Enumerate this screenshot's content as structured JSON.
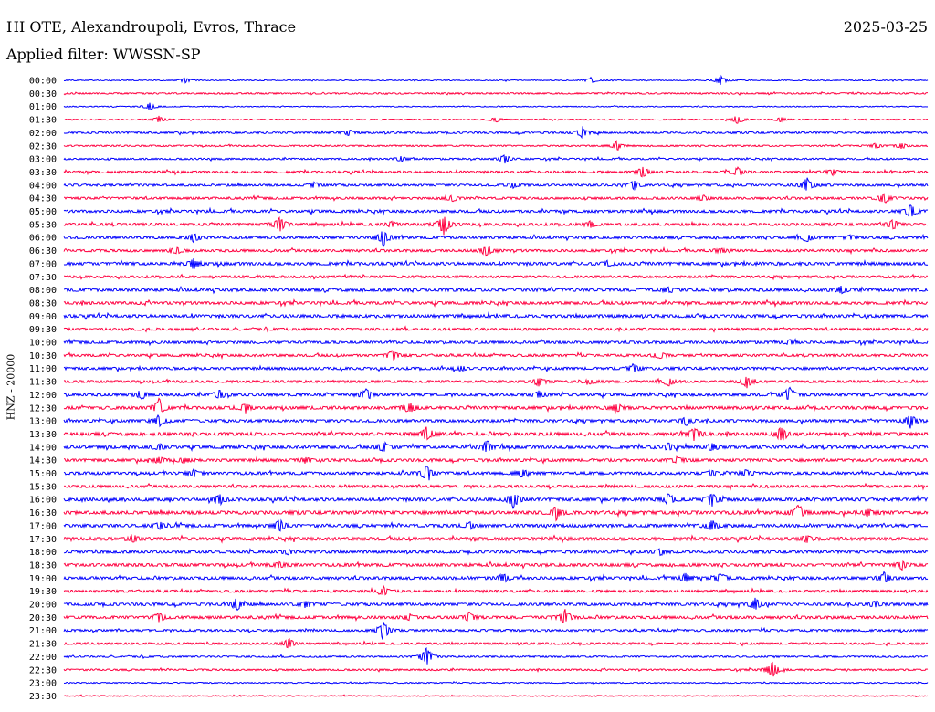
{
  "header": {
    "station": "HI OTE, Alexandroupoli, Evros, Thrace",
    "date": "2025-03-25",
    "filter": "Applied filter: WWSSN-SP"
  },
  "chart_data": {
    "type": "line",
    "title": "HI OTE, Alexandroupoli, Evros, Thrace",
    "subtitle": "Applied filter: WWSSN-SP",
    "date": "2025-03-25",
    "ylabel": "HNZ - 20000",
    "xlabel": "",
    "grid": false,
    "colors": {
      "even_hour": "#0000ff",
      "half_hour": "#ff0040"
    },
    "y_tick_labels": [
      "00:00",
      "00:30",
      "01:00",
      "01:30",
      "02:00",
      "02:30",
      "03:00",
      "03:30",
      "04:00",
      "04:30",
      "05:00",
      "05:30",
      "06:00",
      "06:30",
      "07:00",
      "07:30",
      "08:00",
      "08:30",
      "09:00",
      "09:30",
      "10:00",
      "10:30",
      "11:00",
      "11:30",
      "12:00",
      "12:30",
      "13:00",
      "13:30",
      "14:00",
      "14:30",
      "15:00",
      "15:30",
      "16:00",
      "16:30",
      "17:00",
      "17:30",
      "18:00",
      "18:30",
      "19:00",
      "19:30",
      "20:00",
      "20:30",
      "21:00",
      "21:30",
      "22:00",
      "22:30",
      "23:00",
      "23:30"
    ],
    "trace_noise_level": [
      0.5,
      0.8,
      0.5,
      0.6,
      1.0,
      0.8,
      0.9,
      1.2,
      1.2,
      1.2,
      1.4,
      1.4,
      1.4,
      1.3,
      1.6,
      1.3,
      1.6,
      1.5,
      1.6,
      1.3,
      1.4,
      1.3,
      1.4,
      1.3,
      1.5,
      1.6,
      1.5,
      1.7,
      1.6,
      1.5,
      1.5,
      1.4,
      1.7,
      1.8,
      1.6,
      1.7,
      1.4,
      1.6,
      1.5,
      1.3,
      1.5,
      1.5,
      1.2,
      1.1,
      0.9,
      0.9,
      0.6,
      0.6
    ],
    "events": [
      {
        "trace": 0,
        "pos": [
          0.76,
          0.61,
          0.14
        ],
        "amp": [
          5,
          3,
          3
        ]
      },
      {
        "trace": 2,
        "pos": [
          0.1
        ],
        "amp": [
          5
        ]
      },
      {
        "trace": 3,
        "pos": [
          0.11,
          0.78,
          0.83,
          0.5
        ],
        "amp": [
          4,
          5,
          3,
          3
        ]
      },
      {
        "trace": 4,
        "pos": [
          0.6,
          0.33
        ],
        "amp": [
          6,
          3
        ]
      },
      {
        "trace": 5,
        "pos": [
          0.64,
          0.94,
          0.97
        ],
        "amp": [
          5,
          3,
          3
        ]
      },
      {
        "trace": 6,
        "pos": [
          0.51,
          0.39
        ],
        "amp": [
          5,
          3
        ]
      },
      {
        "trace": 7,
        "pos": [
          0.67,
          0.78,
          0.89
        ],
        "amp": [
          7,
          5,
          3
        ]
      },
      {
        "trace": 8,
        "pos": [
          0.86,
          0.66,
          0.29,
          0.52
        ],
        "amp": [
          9,
          5,
          3,
          3
        ]
      },
      {
        "trace": 9,
        "pos": [
          0.95,
          0.45,
          0.74
        ],
        "amp": [
          6,
          4,
          3
        ]
      },
      {
        "trace": 10,
        "pos": [
          0.98
        ],
        "amp": [
          8
        ]
      },
      {
        "trace": 11,
        "pos": [
          0.25,
          0.44,
          0.96,
          0.61,
          0.38
        ],
        "amp": [
          9,
          12,
          6,
          4,
          3
        ]
      },
      {
        "trace": 12,
        "pos": [
          0.37,
          0.15,
          0.86,
          0.91
        ],
        "amp": [
          10,
          5,
          5,
          3
        ]
      },
      {
        "trace": 13,
        "pos": [
          0.49,
          0.13,
          0.76
        ],
        "amp": [
          6,
          4,
          3
        ]
      },
      {
        "trace": 14,
        "pos": [
          0.15,
          0.63
        ],
        "amp": [
          6,
          3
        ]
      },
      {
        "trace": 16,
        "pos": [
          0.9,
          0.7
        ],
        "amp": [
          4,
          3
        ]
      },
      {
        "trace": 20,
        "pos": [
          0.84
        ],
        "amp": [
          3
        ]
      },
      {
        "trace": 21,
        "pos": [
          0.38,
          0.69
        ],
        "amp": [
          6,
          4
        ]
      },
      {
        "trace": 22,
        "pos": [
          0.66,
          0.46
        ],
        "amp": [
          5,
          3
        ]
      },
      {
        "trace": 23,
        "pos": [
          0.55,
          0.7,
          0.79,
          0.61
        ],
        "amp": [
          5,
          5,
          7,
          3
        ]
      },
      {
        "trace": 24,
        "pos": [
          0.09,
          0.18,
          0.35,
          0.84,
          0.55
        ],
        "amp": [
          5,
          5,
          7,
          8,
          4
        ]
      },
      {
        "trace": 25,
        "pos": [
          0.11,
          0.21,
          0.4,
          0.64
        ],
        "amp": [
          10,
          5,
          6,
          5
        ]
      },
      {
        "trace": 26,
        "pos": [
          0.11,
          0.72,
          0.98
        ],
        "amp": [
          7,
          5,
          8
        ]
      },
      {
        "trace": 27,
        "pos": [
          0.42,
          0.73,
          0.83
        ],
        "amp": [
          8,
          7,
          7
        ]
      },
      {
        "trace": 28,
        "pos": [
          0.11,
          0.37,
          0.49,
          0.7,
          0.75
        ],
        "amp": [
          4,
          6,
          7,
          4,
          5
        ]
      },
      {
        "trace": 29,
        "pos": [
          0.11,
          0.14,
          0.28,
          0.71
        ],
        "amp": [
          4,
          3,
          3,
          3
        ]
      },
      {
        "trace": 30,
        "pos": [
          0.42,
          0.15,
          0.53,
          0.75,
          0.79
        ],
        "amp": [
          10,
          4,
          5,
          4,
          4
        ]
      },
      {
        "trace": 32,
        "pos": [
          0.18,
          0.52,
          0.7,
          0.75
        ],
        "amp": [
          6,
          9,
          6,
          8
        ]
      },
      {
        "trace": 33,
        "pos": [
          0.57,
          0.85,
          0.93
        ],
        "amp": [
          8,
          10,
          4
        ]
      },
      {
        "trace": 34,
        "pos": [
          0.11,
          0.25,
          0.47,
          0.75
        ],
        "amp": [
          4,
          7,
          4,
          7
        ]
      },
      {
        "trace": 35,
        "pos": [
          0.08,
          0.86
        ],
        "amp": [
          4,
          4
        ]
      },
      {
        "trace": 36,
        "pos": [
          0.26,
          0.69
        ],
        "amp": [
          3,
          4
        ]
      },
      {
        "trace": 37,
        "pos": [
          0.25,
          0.97
        ],
        "amp": [
          3,
          5
        ]
      },
      {
        "trace": 38,
        "pos": [
          0.51,
          0.72,
          0.76,
          0.95
        ],
        "amp": [
          5,
          5,
          6,
          6
        ]
      },
      {
        "trace": 39,
        "pos": [
          0.37
        ],
        "amp": [
          5
        ]
      },
      {
        "trace": 40,
        "pos": [
          0.2,
          0.28,
          0.8,
          0.94
        ],
        "amp": [
          7,
          4,
          7,
          4
        ]
      },
      {
        "trace": 41,
        "pos": [
          0.11,
          0.47,
          0.58,
          0.4
        ],
        "amp": [
          5,
          6,
          9,
          4
        ]
      },
      {
        "trace": 42,
        "pos": [
          0.37
        ],
        "amp": [
          12
        ]
      },
      {
        "trace": 43,
        "pos": [
          0.26
        ],
        "amp": [
          6
        ]
      },
      {
        "trace": 44,
        "pos": [
          0.42
        ],
        "amp": [
          12
        ]
      },
      {
        "trace": 45,
        "pos": [
          0.82
        ],
        "amp": [
          11
        ]
      }
    ]
  }
}
